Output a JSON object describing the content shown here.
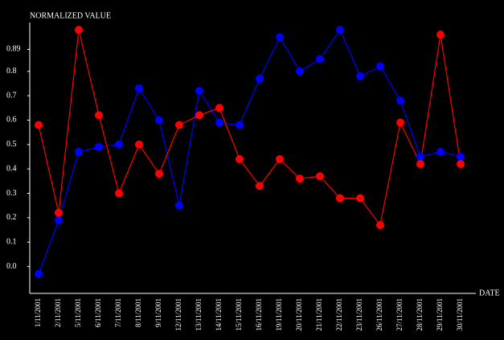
{
  "chart_data": {
    "type": "line",
    "ylabel": "NORMALIZED VALUE",
    "xlabel": "DATE",
    "categories": [
      "1/11/2001",
      "2/11/2001",
      "5/11/2001",
      "6/11/2001",
      "7/11/2001",
      "8/11/2001",
      "9/11/2001",
      "12/11/2001",
      "13/11/2001",
      "14/11/2001",
      "15/11/2001",
      "16/11/2001",
      "19/11/2001",
      "20/11/2001",
      "21/11/2001",
      "22/11/2001",
      "23/11/2001",
      "26/11/2001",
      "27/11/2001",
      "28/11/2001",
      "29/11/2001",
      "30/11/2001"
    ],
    "series": [
      {
        "color": "#0000ff",
        "values": [
          -0.03,
          0.19,
          0.47,
          0.49,
          0.5,
          0.73,
          0.6,
          0.25,
          0.72,
          0.59,
          0.58,
          0.77,
          0.94,
          0.8,
          0.85,
          0.97,
          0.78,
          0.82,
          0.68,
          0.45,
          0.47,
          0.45
        ]
      },
      {
        "color": "#ff0000",
        "values": [
          0.58,
          0.22,
          0.97,
          0.62,
          0.3,
          0.5,
          0.38,
          0.58,
          0.62,
          0.65,
          0.44,
          0.33,
          0.44,
          0.36,
          0.37,
          0.28,
          0.28,
          0.17,
          0.59,
          0.42,
          0.95,
          0.42
        ]
      }
    ],
    "ylim": [
      -0.11,
      1.0
    ],
    "yticks": [
      {
        "value": 0,
        "label": "0.0"
      },
      0.1,
      0.2,
      0.3,
      0.4,
      0.5,
      0.6,
      0.7,
      0.8,
      0.89
    ]
  }
}
